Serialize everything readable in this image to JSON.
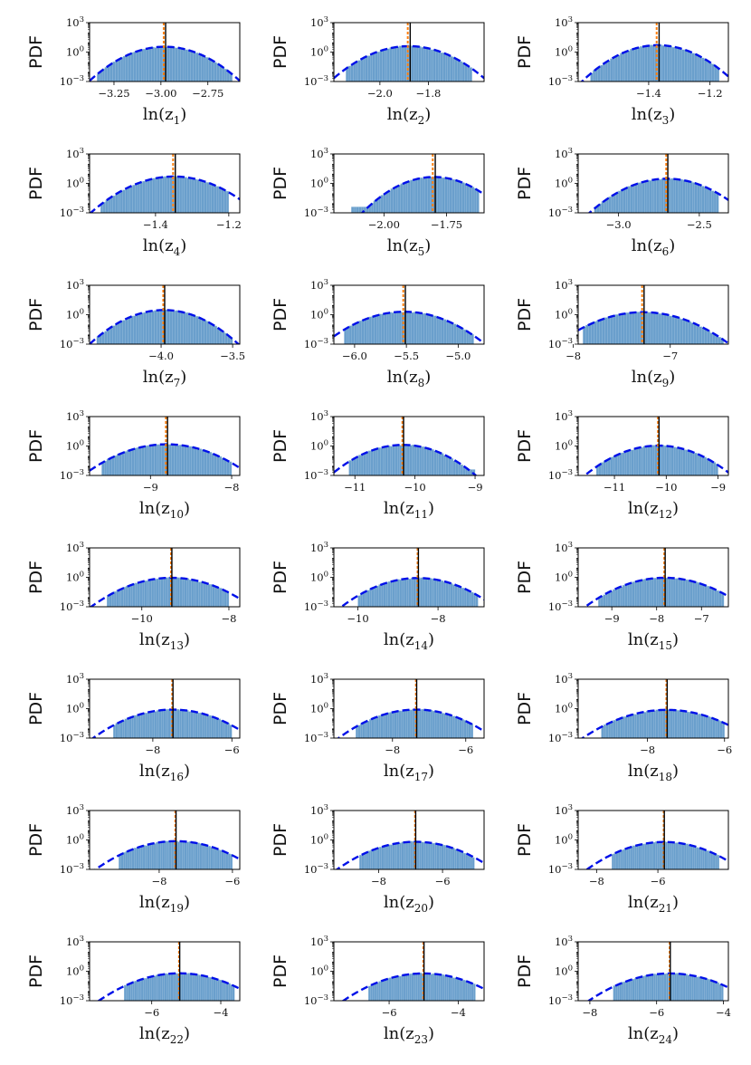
{
  "figure": {
    "ylabel": "PDF",
    "yticks": [
      {
        "base": "10",
        "exp": "3"
      },
      {
        "base": "10",
        "exp": "0"
      },
      {
        "base": "10",
        "exp": "−3"
      }
    ],
    "legend": "none",
    "grid": false,
    "hist_color": "#6a9fcc",
    "fit_color": "#0010e8",
    "mean_color": "#ff7f0e",
    "true_color": "#000000"
  },
  "chart_data": [
    {
      "type": "bar",
      "xlabel_base": "ln(z",
      "xlabel_sub": "1",
      "xlabel_close": ")",
      "xlim": [
        -3.38,
        -2.58
      ],
      "xticks": [
        -3.25,
        -3.0,
        -2.75
      ],
      "xtick_labels": [
        "−3.25",
        "−3.00",
        "−2.75"
      ],
      "ylog": true,
      "ylim": [
        0.001,
        1000
      ],
      "center": -2.98,
      "std": 0.1,
      "peak": 3.5,
      "hist_range": [
        -3.34,
        -2.62
      ],
      "mean_line": -2.985,
      "true_line": -2.975
    },
    {
      "type": "bar",
      "xlabel_base": "ln(z",
      "xlabel_sub": "2",
      "xlabel_close": ")",
      "xlim": [
        -2.19,
        -1.57
      ],
      "xticks": [
        -2.0,
        -1.8
      ],
      "xtick_labels": [
        "−2.0",
        "−1.8"
      ],
      "ylog": true,
      "ylim": [
        0.001,
        1000
      ],
      "center": -1.88,
      "std": 0.08,
      "peak": 4.0,
      "hist_range": [
        -2.14,
        -1.62
      ],
      "mean_line": -1.885,
      "true_line": -1.875
    },
    {
      "type": "bar",
      "xlabel_base": "ln(z",
      "xlabel_sub": "3",
      "xlabel_close": ")",
      "xlim": [
        -1.63,
        -1.14
      ],
      "xticks": [
        -1.4,
        -1.2
      ],
      "xtick_labels": [
        "−1.4",
        "−1.2"
      ],
      "ylog": true,
      "ylim": [
        0.001,
        1000
      ],
      "center": -1.37,
      "std": 0.06,
      "peak": 5.0,
      "hist_range": [
        -1.59,
        -1.17
      ],
      "mean_line": -1.374,
      "true_line": -1.366
    },
    {
      "type": "bar",
      "xlabel_base": "ln(z",
      "xlabel_sub": "4",
      "xlabel_close": ")",
      "xlim": [
        -1.58,
        -1.17
      ],
      "xticks": [
        -1.4,
        -1.2
      ],
      "xtick_labels": [
        "−1.4",
        "−1.2"
      ],
      "ylog": true,
      "ylim": [
        0.001,
        1000
      ],
      "center": -1.35,
      "std": 0.055,
      "peak": 5.0,
      "hist_range": [
        -1.55,
        -1.2
      ],
      "mean_line": -1.352,
      "true_line": -1.346
    },
    {
      "type": "bar",
      "xlabel_base": "ln(z",
      "xlabel_sub": "5",
      "xlabel_close": ")",
      "xlim": [
        -2.2,
        -1.6
      ],
      "xticks": [
        -2.0,
        -1.75
      ],
      "xtick_labels": [
        "−2.00",
        "−1.75"
      ],
      "ylog": true,
      "ylim": [
        0.001,
        1000
      ],
      "center": -1.8,
      "std": 0.07,
      "peak": 4.5,
      "hist_range": [
        -2.13,
        -1.62
      ],
      "mean_line": -1.805,
      "true_line": -1.795
    },
    {
      "type": "bar",
      "xlabel_base": "ln(z",
      "xlabel_sub": "6",
      "xlabel_close": ")",
      "xlim": [
        -3.25,
        -2.32
      ],
      "xticks": [
        -3.0,
        -2.5
      ],
      "xtick_labels": [
        "−3.0",
        "−2.5"
      ],
      "ylog": true,
      "ylim": [
        0.001,
        1000
      ],
      "center": -2.7,
      "std": 0.12,
      "peak": 3.0,
      "hist_range": [
        -3.15,
        -2.38
      ],
      "mean_line": -2.705,
      "true_line": -2.695
    },
    {
      "type": "bar",
      "xlabel_base": "ln(z",
      "xlabel_sub": "7",
      "xlabel_close": ")",
      "xlim": [
        -4.5,
        -3.45
      ],
      "xticks": [
        -4.0,
        -3.5
      ],
      "xtick_labels": [
        "−4.0",
        "−3.5"
      ],
      "ylog": true,
      "ylim": [
        0.001,
        1000
      ],
      "center": -3.98,
      "std": 0.13,
      "peak": 3.0,
      "hist_range": [
        -4.45,
        -3.5
      ],
      "mean_line": -3.985,
      "true_line": -3.975
    },
    {
      "type": "bar",
      "xlabel_base": "ln(z",
      "xlabel_sub": "8",
      "xlabel_close": ")",
      "xlim": [
        -6.2,
        -4.75
      ],
      "xticks": [
        -6.0,
        -5.5,
        -5.0
      ],
      "xtick_labels": [
        "−6.0",
        "−5.5",
        "−5.0"
      ],
      "ylog": true,
      "ylim": [
        0.001,
        1000
      ],
      "center": -5.52,
      "std": 0.2,
      "peak": 2.0,
      "hist_range": [
        -6.1,
        -4.85
      ],
      "mean_line": -5.53,
      "true_line": -5.51
    },
    {
      "type": "bar",
      "xlabel_base": "ln(z",
      "xlabel_sub": "9",
      "xlabel_close": ")",
      "xlim": [
        -7.95,
        -6.4
      ],
      "xticks": [
        -8.0,
        -7.0
      ],
      "xtick_labels": [
        "−8",
        "−7"
      ],
      "ylog": true,
      "ylim": [
        0.001,
        1000
      ],
      "center": -7.28,
      "std": 0.23,
      "peak": 1.8,
      "hist_range": [
        -7.9,
        -6.45
      ],
      "mean_line": -7.29,
      "true_line": -7.27
    },
    {
      "type": "bar",
      "xlabel_base": "ln(z",
      "xlabel_sub": "10",
      "xlabel_close": ")",
      "xlim": [
        -9.75,
        -7.9
      ],
      "xticks": [
        -9.0,
        -8.0
      ],
      "xtick_labels": [
        "−9",
        "−8"
      ],
      "ylog": true,
      "ylim": [
        0.001,
        1000
      ],
      "center": -8.8,
      "std": 0.27,
      "peak": 1.5,
      "hist_range": [
        -9.6,
        -8.0
      ],
      "mean_line": -8.81,
      "true_line": -8.79
    },
    {
      "type": "bar",
      "xlabel_base": "ln(z",
      "xlabel_sub": "11",
      "xlabel_close": ")",
      "xlim": [
        -11.35,
        -8.85
      ],
      "xticks": [
        -11.0,
        -10.0,
        -9.0
      ],
      "xtick_labels": [
        "−11",
        "−10",
        "−9"
      ],
      "ylog": true,
      "ylim": [
        0.001,
        1000
      ],
      "center": -10.2,
      "std": 0.32,
      "peak": 1.3,
      "hist_range": [
        -11.1,
        -9.0
      ],
      "mean_line": -10.21,
      "true_line": -10.19
    },
    {
      "type": "bar",
      "xlabel_base": "ln(z",
      "xlabel_sub": "12",
      "xlabel_close": ")",
      "xlim": [
        -11.7,
        -8.8
      ],
      "xticks": [
        -11.0,
        -10.0,
        -9.0
      ],
      "xtick_labels": [
        "−11",
        "−10",
        "−9"
      ],
      "ylog": true,
      "ylim": [
        0.001,
        1000
      ],
      "center": -10.15,
      "std": 0.38,
      "peak": 1.1,
      "hist_range": [
        -11.35,
        -9.0
      ],
      "mean_line": -10.16,
      "true_line": -10.14
    },
    {
      "type": "bar",
      "xlabel_base": "ln(z",
      "xlabel_sub": "13",
      "xlabel_close": ")",
      "xlim": [
        -11.2,
        -7.75
      ],
      "xticks": [
        -10.0,
        -8.0
      ],
      "xtick_labels": [
        "−10",
        "−8"
      ],
      "ylog": true,
      "ylim": [
        0.001,
        1000
      ],
      "center": -9.32,
      "std": 0.5,
      "peak": 0.9,
      "hist_range": [
        -10.8,
        -8.0
      ],
      "mean_line": -9.33,
      "true_line": -9.31
    },
    {
      "type": "bar",
      "xlabel_base": "ln(z",
      "xlabel_sub": "14",
      "xlabel_close": ")",
      "xlim": [
        -10.6,
        -6.85
      ],
      "xticks": [
        -10.0,
        -8.0
      ],
      "xtick_labels": [
        "−10",
        "−8"
      ],
      "ylog": true,
      "ylim": [
        0.001,
        1000
      ],
      "center": -8.5,
      "std": 0.52,
      "peak": 0.85,
      "hist_range": [
        -10.0,
        -7.0
      ],
      "mean_line": -8.51,
      "true_line": -8.49
    },
    {
      "type": "bar",
      "xlabel_base": "ln(z",
      "xlabel_sub": "15",
      "xlabel_close": ")",
      "xlim": [
        -9.75,
        -6.4
      ],
      "xticks": [
        -9.0,
        -8.0,
        -7.0
      ],
      "xtick_labels": [
        "−9",
        "−8",
        "−7"
      ],
      "ylog": true,
      "ylim": [
        0.001,
        1000
      ],
      "center": -7.82,
      "std": 0.48,
      "peak": 0.9,
      "hist_range": [
        -9.3,
        -6.5
      ],
      "mean_line": -7.83,
      "true_line": -7.81
    },
    {
      "type": "bar",
      "xlabel_base": "ln(z",
      "xlabel_sub": "16",
      "xlabel_close": ")",
      "xlim": [
        -9.6,
        -5.8
      ],
      "xticks": [
        -8.0,
        -6.0
      ],
      "xtick_labels": [
        "−8",
        "−6"
      ],
      "ylog": true,
      "ylim": [
        0.001,
        1000
      ],
      "center": -7.5,
      "std": 0.55,
      "peak": 0.8,
      "hist_range": [
        -9.0,
        -6.0
      ],
      "mean_line": -7.51,
      "true_line": -7.49
    },
    {
      "type": "bar",
      "xlabel_base": "ln(z",
      "xlabel_sub": "17",
      "xlabel_close": ")",
      "xlim": [
        -9.6,
        -5.5
      ],
      "xticks": [
        -8.0,
        -6.0
      ],
      "xtick_labels": [
        "−8",
        "−6"
      ],
      "ylog": true,
      "ylim": [
        0.001,
        1000
      ],
      "center": -7.35,
      "std": 0.58,
      "peak": 0.8,
      "hist_range": [
        -9.0,
        -5.8
      ],
      "mean_line": -7.36,
      "true_line": -7.34
    },
    {
      "type": "bar",
      "xlabel_base": "ln(z",
      "xlabel_sub": "18",
      "xlabel_close": ")",
      "xlim": [
        -9.8,
        -5.9
      ],
      "xticks": [
        -8.0,
        -6.0
      ],
      "xtick_labels": [
        "−8",
        "−6"
      ],
      "ylog": true,
      "ylim": [
        0.001,
        1000
      ],
      "center": -7.5,
      "std": 0.6,
      "peak": 0.75,
      "hist_range": [
        -9.2,
        -6.0
      ],
      "mean_line": -7.51,
      "true_line": -7.49
    },
    {
      "type": "bar",
      "xlabel_base": "ln(z",
      "xlabel_sub": "19",
      "xlabel_close": ")",
      "xlim": [
        -9.9,
        -5.8
      ],
      "xticks": [
        -8.0,
        -6.0
      ],
      "xtick_labels": [
        "−8",
        "−6"
      ],
      "ylog": true,
      "ylim": [
        0.001,
        1000
      ],
      "center": -7.55,
      "std": 0.6,
      "peak": 0.75,
      "hist_range": [
        -9.1,
        -6.0
      ],
      "mean_line": -7.56,
      "true_line": -7.54
    },
    {
      "type": "bar",
      "xlabel_base": "ln(z",
      "xlabel_sub": "20",
      "xlabel_close": ")",
      "xlim": [
        -9.4,
        -4.7
      ],
      "xticks": [
        -8.0,
        -6.0
      ],
      "xtick_labels": [
        "−8",
        "−6"
      ],
      "ylog": true,
      "ylim": [
        0.001,
        1000
      ],
      "center": -6.85,
      "std": 0.68,
      "peak": 0.65,
      "hist_range": [
        -8.6,
        -5.0
      ],
      "mean_line": -6.86,
      "true_line": -6.84
    },
    {
      "type": "bar",
      "xlabel_base": "ln(z",
      "xlabel_sub": "21",
      "xlabel_close": ")",
      "xlim": [
        -8.6,
        -3.7
      ],
      "xticks": [
        -8.0,
        -6.0
      ],
      "xtick_labels": [
        "−8",
        "−6"
      ],
      "ylog": true,
      "ylim": [
        0.001,
        1000
      ],
      "center": -5.8,
      "std": 0.7,
      "peak": 0.62,
      "hist_range": [
        -7.5,
        -4.0
      ],
      "mean_line": -5.81,
      "true_line": -5.79
    },
    {
      "type": "bar",
      "xlabel_base": "ln(z",
      "xlabel_sub": "22",
      "xlabel_close": ")",
      "xlim": [
        -7.8,
        -3.45
      ],
      "xticks": [
        -6.0,
        -4.0
      ],
      "xtick_labels": [
        "−6",
        "−4"
      ],
      "ylog": true,
      "ylim": [
        0.001,
        1000
      ],
      "center": -5.2,
      "std": 0.65,
      "peak": 0.62,
      "hist_range": [
        -6.8,
        -3.6
      ],
      "mean_line": -5.21,
      "true_line": -5.19
    },
    {
      "type": "bar",
      "xlabel_base": "ln(z",
      "xlabel_sub": "23",
      "xlabel_close": ")",
      "xlim": [
        -7.6,
        -3.25
      ],
      "xticks": [
        -6.0,
        -4.0
      ],
      "xtick_labels": [
        "−6",
        "−4"
      ],
      "ylog": true,
      "ylim": [
        0.001,
        1000
      ],
      "center": -5.0,
      "std": 0.65,
      "peak": 0.6,
      "hist_range": [
        -6.6,
        -3.5
      ],
      "mean_line": -5.01,
      "true_line": -4.99
    },
    {
      "type": "bar",
      "xlabel_base": "ln(z",
      "xlabel_sub": "24",
      "xlabel_close": ")",
      "xlim": [
        -8.35,
        -3.85
      ],
      "xticks": [
        -8.0,
        -6.0,
        -4.0
      ],
      "xtick_labels": [
        "−8",
        "−6",
        "−4"
      ],
      "ylog": true,
      "ylim": [
        0.001,
        1000
      ],
      "center": -5.6,
      "std": 0.68,
      "peak": 0.6,
      "hist_range": [
        -7.3,
        -4.0
      ],
      "mean_line": -5.61,
      "true_line": -5.59
    }
  ]
}
